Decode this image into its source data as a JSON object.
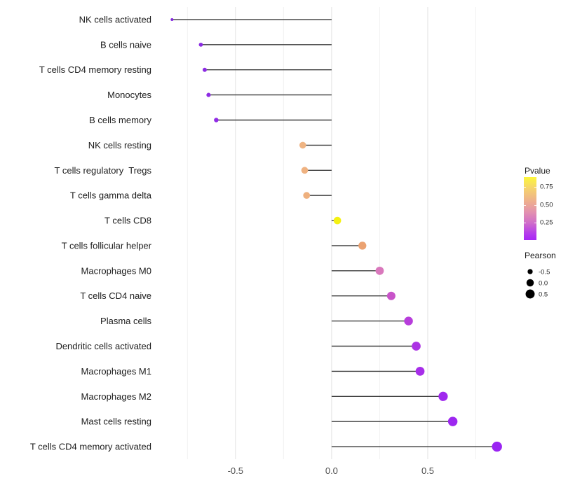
{
  "chart_data": {
    "type": "scatter",
    "variant": "horizontal-lollipop",
    "title": "",
    "xlabel": "",
    "ylabel": "",
    "xlim": [
      -0.915,
      0.945
    ],
    "x_major_ticks": [
      -0.5,
      0.0,
      0.5
    ],
    "x_tick_labels": [
      "-0.5",
      "0.0",
      "0.5"
    ],
    "x_minor_gridlines": [
      -0.75,
      -0.25,
      0.25,
      0.75
    ],
    "grid": "vertical-only",
    "stem_color": "#3d3d3d",
    "points": [
      {
        "label": "NK cells activated",
        "pearson": -0.83,
        "dot_color": "#8226de"
      },
      {
        "label": "B cells naive",
        "pearson": -0.68,
        "dot_color": "#8b2be3"
      },
      {
        "label": "T cells CD4 memory resting",
        "pearson": -0.66,
        "dot_color": "#8c2be3"
      },
      {
        "label": "Monocytes",
        "pearson": -0.64,
        "dot_color": "#8e2ce4"
      },
      {
        "label": "B cells memory",
        "pearson": -0.6,
        "dot_color": "#912be6"
      },
      {
        "label": "NK cells resting",
        "pearson": -0.15,
        "dot_color": "#efb483"
      },
      {
        "label": "T cells regulatory  Tregs",
        "pearson": -0.14,
        "dot_color": "#efb281"
      },
      {
        "label": "T cells gamma delta",
        "pearson": -0.13,
        "dot_color": "#eeb07e"
      },
      {
        "label": "T cells CD8",
        "pearson": 0.03,
        "dot_color": "#f4f112"
      },
      {
        "label": "T cells follicular helper",
        "pearson": 0.16,
        "dot_color": "#eba271"
      },
      {
        "label": "Macrophages M0",
        "pearson": 0.25,
        "dot_color": "#d978bc"
      },
      {
        "label": "T cells CD4 naive",
        "pearson": 0.31,
        "dot_color": "#c854c9"
      },
      {
        "label": "Plasma cells",
        "pearson": 0.4,
        "dot_color": "#b73ddb"
      },
      {
        "label": "Dendritic cells activated",
        "pearson": 0.44,
        "dot_color": "#ac33e4"
      },
      {
        "label": "Macrophages M1",
        "pearson": 0.46,
        "dot_color": "#a72ee9"
      },
      {
        "label": "Macrophages M2",
        "pearson": 0.58,
        "dot_color": "#a029ee"
      },
      {
        "label": "Mast cells resting",
        "pearson": 0.63,
        "dot_color": "#9d27f0"
      },
      {
        "label": "T cells CD4 memory activated",
        "pearson": 0.86,
        "dot_color": "#9a24f2"
      }
    ],
    "legend": {
      "position": "right",
      "pvalue": {
        "title": "Pvalue",
        "tick_labels": [
          "0.75",
          "0.50",
          "0.25"
        ],
        "gradient_stops": [
          {
            "color": "#fcf63c",
            "pos": 0
          },
          {
            "color": "#f5d36d",
            "pos": 18
          },
          {
            "color": "#edac90",
            "pos": 40
          },
          {
            "color": "#e392ae",
            "pos": 55
          },
          {
            "color": "#d16fc8",
            "pos": 72
          },
          {
            "color": "#b43bec",
            "pos": 90
          },
          {
            "color": "#a826f5",
            "pos": 100
          }
        ]
      },
      "pearson": {
        "title": "Pearson",
        "dot_color": "#000000",
        "items": [
          {
            "label": "-0.5",
            "size": -0.5
          },
          {
            "label": "0.0",
            "size": 0.0
          },
          {
            "label": "0.5",
            "size": 0.5
          }
        ]
      }
    }
  }
}
